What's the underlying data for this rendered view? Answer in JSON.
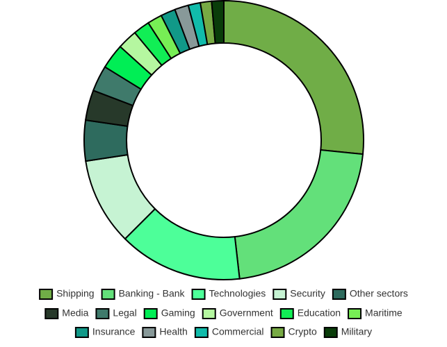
{
  "chart_data": {
    "type": "doughnut",
    "categories": [
      "Shipping",
      "Banking - Bank",
      "Technologies",
      "Security",
      "Other sectors",
      "Media",
      "Legal",
      "Gaming",
      "Government",
      "Education",
      "Maritime",
      "Insurance",
      "Health",
      "Commercial",
      "Crypto",
      "Military"
    ],
    "values": [
      26.6,
      21.6,
      14.3,
      10.1,
      4.7,
      3.5,
      3.0,
      2.9,
      2.3,
      1.9,
      1.7,
      1.7,
      1.6,
      1.4,
      1.3,
      1.4
    ],
    "colors": [
      "#70ad47",
      "#63e07a",
      "#4dff99",
      "#c6f3d3",
      "#2e6b5e",
      "#27392a",
      "#3f7a6b",
      "#00ee55",
      "#b5f7a0",
      "#11ee55",
      "#77ee55",
      "#119988",
      "#889999",
      "#11bbaa",
      "#77aa44",
      "#0a3d0a"
    ],
    "legend": "bottom"
  }
}
